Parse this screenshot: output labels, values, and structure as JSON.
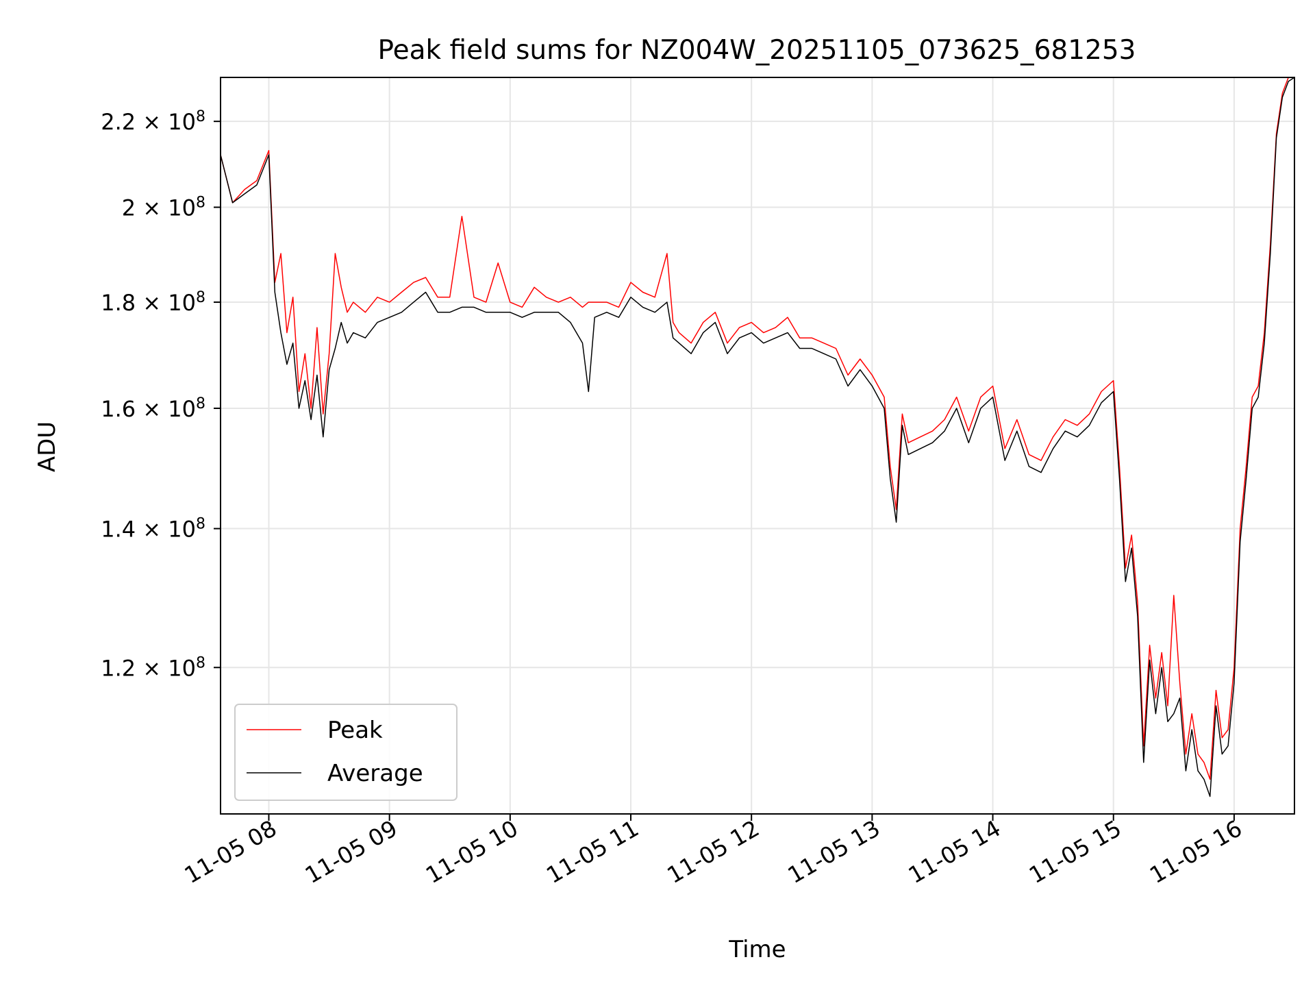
{
  "chart_data": {
    "type": "line",
    "title": "Peak field sums for NZ004W_20251105_073625_681253",
    "xlabel": "Time",
    "ylabel": "ADU",
    "yscale": "log",
    "xlim_hours": [
      7.6,
      16.5
    ],
    "ylim": [
      102000000,
      231000000
    ],
    "grid": true,
    "legend_position": "lower-left",
    "x_ticks": [
      {
        "value": 8,
        "label": "11-05 08"
      },
      {
        "value": 9,
        "label": "11-05 09"
      },
      {
        "value": 10,
        "label": "11-05 10"
      },
      {
        "value": 11,
        "label": "11-05 11"
      },
      {
        "value": 12,
        "label": "11-05 12"
      },
      {
        "value": 13,
        "label": "11-05 13"
      },
      {
        "value": 14,
        "label": "11-05 14"
      },
      {
        "value": 15,
        "label": "11-05 15"
      },
      {
        "value": 16,
        "label": "11-05 16"
      }
    ],
    "y_ticks": [
      {
        "value": 120000000,
        "mantissa": "1.2",
        "exponent": "8"
      },
      {
        "value": 140000000,
        "mantissa": "1.4",
        "exponent": "8"
      },
      {
        "value": 160000000,
        "mantissa": "1.6",
        "exponent": "8"
      },
      {
        "value": 180000000,
        "mantissa": "1.8",
        "exponent": "8"
      },
      {
        "value": 200000000,
        "mantissa": "2",
        "exponent": "8"
      },
      {
        "value": 220000000,
        "mantissa": "2.2",
        "exponent": "8"
      }
    ],
    "times_label": "hours since 11-05 00:00",
    "x": [
      7.6,
      7.7,
      7.8,
      7.9,
      8.0,
      8.05,
      8.1,
      8.15,
      8.2,
      8.25,
      8.3,
      8.35,
      8.4,
      8.45,
      8.5,
      8.55,
      8.6,
      8.65,
      8.7,
      8.8,
      8.9,
      9.0,
      9.1,
      9.2,
      9.3,
      9.4,
      9.5,
      9.6,
      9.7,
      9.8,
      9.9,
      10.0,
      10.1,
      10.2,
      10.3,
      10.4,
      10.5,
      10.6,
      10.65,
      10.7,
      10.8,
      10.9,
      11.0,
      11.1,
      11.2,
      11.3,
      11.35,
      11.4,
      11.5,
      11.6,
      11.7,
      11.8,
      11.9,
      12.0,
      12.1,
      12.2,
      12.3,
      12.4,
      12.5,
      12.6,
      12.7,
      12.8,
      12.9,
      13.0,
      13.1,
      13.15,
      13.2,
      13.25,
      13.3,
      13.4,
      13.5,
      13.6,
      13.7,
      13.8,
      13.9,
      14.0,
      14.1,
      14.2,
      14.3,
      14.4,
      14.5,
      14.6,
      14.7,
      14.8,
      14.9,
      15.0,
      15.05,
      15.1,
      15.15,
      15.2,
      15.25,
      15.3,
      15.35,
      15.4,
      15.45,
      15.5,
      15.55,
      15.6,
      15.65,
      15.7,
      15.75,
      15.8,
      15.85,
      15.9,
      15.95,
      16.0,
      16.05,
      16.1,
      16.15,
      16.2,
      16.25,
      16.3,
      16.35,
      16.4,
      16.45,
      16.5
    ],
    "series": [
      {
        "name": "Average",
        "color": "#000000",
        "values": [
          212000000,
          201000000,
          203000000,
          205000000,
          212000000,
          182000000,
          174000000,
          168000000,
          172000000,
          160000000,
          165000000,
          158000000,
          166000000,
          155000000,
          167000000,
          171000000,
          176000000,
          172000000,
          174000000,
          173000000,
          176000000,
          177000000,
          178000000,
          180000000,
          182000000,
          178000000,
          178000000,
          179000000,
          179000000,
          178000000,
          178000000,
          178000000,
          177000000,
          178000000,
          178000000,
          178000000,
          176000000,
          172000000,
          163000000,
          177000000,
          178000000,
          177000000,
          181000000,
          179000000,
          178000000,
          180000000,
          173000000,
          172000000,
          170000000,
          174000000,
          176000000,
          170000000,
          173000000,
          174000000,
          172000000,
          173000000,
          174000000,
          171000000,
          171000000,
          170000000,
          169000000,
          164000000,
          167000000,
          164000000,
          160000000,
          148000000,
          141000000,
          157000000,
          152000000,
          153000000,
          154000000,
          156000000,
          160000000,
          154000000,
          160000000,
          162000000,
          151000000,
          156000000,
          150000000,
          149000000,
          153000000,
          156000000,
          155000000,
          157000000,
          161000000,
          163000000,
          148000000,
          132000000,
          137000000,
          127000000,
          108000000,
          121000000,
          114000000,
          120000000,
          113000000,
          114000000,
          116000000,
          107000000,
          112000000,
          107000000,
          106000000,
          104000000,
          115000000,
          109000000,
          110000000,
          118000000,
          138000000,
          148000000,
          160000000,
          162000000,
          172000000,
          190000000,
          216000000,
          226000000,
          230000000,
          231000000
        ]
      },
      {
        "name": "Peak",
        "color": "#ff0000",
        "values": [
          212000000,
          201000000,
          204000000,
          206000000,
          213000000,
          184000000,
          190000000,
          174000000,
          181000000,
          163000000,
          170000000,
          160000000,
          175000000,
          159000000,
          170000000,
          190000000,
          183000000,
          178000000,
          180000000,
          178000000,
          181000000,
          180000000,
          182000000,
          184000000,
          185000000,
          181000000,
          181000000,
          198000000,
          181000000,
          180000000,
          188000000,
          180000000,
          179000000,
          183000000,
          181000000,
          180000000,
          181000000,
          179000000,
          180000000,
          180000000,
          180000000,
          179000000,
          184000000,
          182000000,
          181000000,
          190000000,
          176000000,
          174000000,
          172000000,
          176000000,
          178000000,
          172000000,
          175000000,
          176000000,
          174000000,
          175000000,
          177000000,
          173000000,
          173000000,
          172000000,
          171000000,
          166000000,
          169000000,
          166000000,
          162000000,
          150000000,
          143000000,
          159000000,
          154000000,
          155000000,
          156000000,
          158000000,
          162000000,
          156000000,
          162000000,
          164000000,
          153000000,
          158000000,
          152000000,
          151000000,
          155000000,
          158000000,
          157000000,
          159000000,
          163000000,
          165000000,
          150000000,
          134000000,
          139000000,
          129000000,
          110000000,
          123000000,
          116000000,
          122000000,
          115000000,
          130000000,
          118000000,
          109000000,
          114000000,
          109000000,
          108000000,
          106000000,
          117000000,
          111000000,
          112000000,
          120000000,
          140000000,
          150000000,
          162000000,
          164000000,
          174000000,
          192000000,
          217000000,
          227000000,
          231000000,
          231000000
        ]
      }
    ],
    "legend": [
      {
        "label": "Peak",
        "color": "#ff0000"
      },
      {
        "label": "Average",
        "color": "#000000"
      }
    ]
  }
}
